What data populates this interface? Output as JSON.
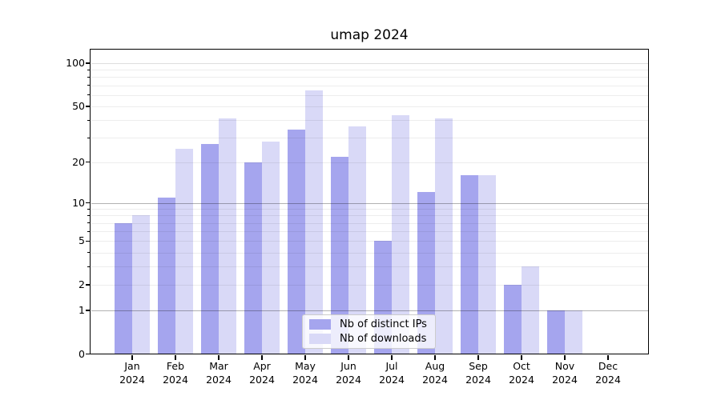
{
  "chart_data": {
    "type": "bar",
    "title": "umap 2024",
    "categories": [
      "Jan",
      "Feb",
      "Mar",
      "Apr",
      "May",
      "Jun",
      "Jul",
      "Aug",
      "Sep",
      "Oct",
      "Nov",
      "Dec"
    ],
    "tick_year": "2024",
    "series": [
      {
        "name": "Nb of distinct IPs",
        "color": "#a5a5ee",
        "values": [
          7,
          11,
          27,
          20,
          34,
          22,
          5,
          12,
          16,
          2,
          1,
          0
        ]
      },
      {
        "name": "Nb of downloads",
        "color": "#d9d9f7",
        "values": [
          8,
          25,
          41,
          28,
          65,
          36,
          43,
          41,
          16,
          3,
          1,
          0
        ]
      }
    ],
    "yscale": "log1p",
    "ylim": [
      0,
      125
    ],
    "y_tick_values": [
      0,
      1,
      2,
      5,
      10,
      20,
      50,
      100
    ],
    "gridlines": {
      "minor": [
        2,
        3,
        4,
        5,
        6,
        7,
        8,
        9,
        20,
        30,
        40,
        50,
        60,
        70,
        80,
        90
      ],
      "major": [
        1,
        10,
        100
      ]
    },
    "grid": true,
    "legend_position": "lower center",
    "xlabel": "",
    "ylabel": ""
  }
}
